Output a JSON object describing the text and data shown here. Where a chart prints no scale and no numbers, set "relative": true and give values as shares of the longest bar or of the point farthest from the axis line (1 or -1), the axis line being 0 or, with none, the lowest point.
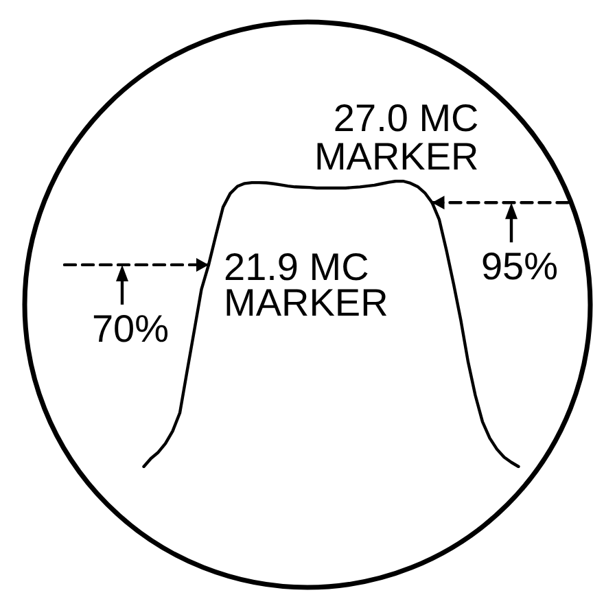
{
  "chart_data": {
    "type": "line",
    "relative": true,
    "tick_labels": false,
    "grid": false,
    "marker": "none",
    "line_style": "solid",
    "categories": [
      null,
      null,
      null,
      null,
      null,
      null,
      null,
      null,
      null,
      null,
      null,
      null,
      null,
      null,
      null,
      null,
      null,
      null,
      null,
      null,
      null,
      null,
      null,
      null,
      null,
      null,
      null,
      null,
      null,
      null,
      null,
      null,
      null,
      null,
      null,
      null,
      null,
      null,
      null,
      null,
      null,
      null,
      null,
      null,
      null,
      null,
      null,
      null,
      null,
      null,
      null,
      null,
      null,
      null,
      null,
      null,
      null,
      null,
      null,
      null,
      null,
      null,
      null,
      null,
      null,
      null,
      null,
      null,
      null,
      null,
      null
    ],
    "series": [
      {
        "color": "#000000",
        "values": [
          null,
          null,
          null,
          null,
          null,
          null,
          null,
          null,
          null,
          null,
          null,
          0,
          0.029,
          0.05,
          0.081,
          0.124,
          0.188,
          0.333,
          0.476,
          0.621,
          0.707,
          0.81,
          0.909,
          0.957,
          0.982,
          0.992,
          0.995,
          0.995,
          0.994,
          0.991,
          0.987,
          0.983,
          0.98,
          0.979,
          0.978,
          0.976,
          0.976,
          0.976,
          0.976,
          0.976,
          0.978,
          0.98,
          0.983,
          0.986,
          0.991,
          0.996,
          1,
          1,
          0.993,
          0.981,
          0.959,
          0.925,
          0.865,
          0.757,
          0.639,
          0.512,
          0.367,
          0.25,
          0.157,
          0.1,
          0.061,
          0.033,
          0.015,
          0,
          null,
          null,
          null,
          null,
          null,
          null,
          null
        ]
      },
      {
        "color": "#000000",
        "line_style": "dashed",
        "values": [
          0.707,
          0.707,
          0.707,
          0.707,
          0.707,
          0.707,
          0.707,
          0.707,
          0.707,
          0.707,
          0.707,
          0.707,
          0.707,
          0.707,
          0.707,
          0.707,
          0.707,
          0.707,
          0.707,
          0.707,
          0.707,
          null,
          null,
          null,
          null,
          null,
          null,
          null,
          null,
          null,
          null,
          null,
          null,
          null,
          null,
          null,
          null,
          null,
          null,
          null,
          null,
          null,
          null,
          null,
          null,
          null,
          null,
          null,
          null,
          null,
          null,
          null,
          null,
          null,
          null,
          null,
          null,
          null,
          null,
          null,
          null,
          null,
          null,
          null,
          null,
          null,
          null,
          null,
          null,
          null,
          null
        ]
      },
      {
        "color": "#000000",
        "line_style": "dashed",
        "values": [
          null,
          null,
          null,
          null,
          null,
          null,
          null,
          null,
          null,
          null,
          null,
          null,
          null,
          null,
          null,
          null,
          null,
          null,
          null,
          null,
          null,
          null,
          null,
          null,
          null,
          null,
          null,
          null,
          null,
          null,
          null,
          null,
          null,
          null,
          null,
          null,
          null,
          null,
          null,
          null,
          null,
          null,
          null,
          null,
          null,
          null,
          null,
          null,
          null,
          null,
          null,
          0.925,
          0.925,
          0.925,
          0.925,
          0.925,
          0.925,
          0.925,
          0.925,
          0.925,
          0.925,
          0.925,
          0.925,
          0.925,
          0.925,
          0.925,
          0.925,
          0.925,
          0.925,
          0.925,
          0.925
        ]
      }
    ],
    "annotations": [
      "21.9 MC\nMARKER",
      "27.0 MC\nMARKER",
      "70%",
      "95%"
    ]
  }
}
